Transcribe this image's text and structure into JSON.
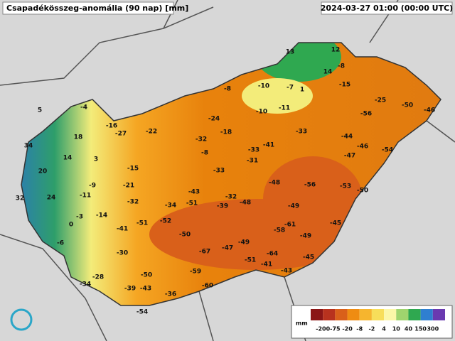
{
  "header": {
    "title": "Csapadékösszeg-anomália (90 nap) [mm]",
    "timestamp": "2024-03-27 01:00 (00:00 UTC)"
  },
  "stations": [
    5,
    18,
    34,
    14,
    3,
    20,
    24,
    32,
    -11,
    -9,
    -3,
    -14,
    0,
    -6,
    -4,
    -16,
    -27,
    -22,
    -15,
    -21,
    -32,
    -41,
    -51,
    -52,
    -34,
    -51,
    -43,
    -30,
    -28,
    -34,
    -50,
    -39,
    -43,
    -36,
    -54,
    -60,
    -59,
    -67,
    -50,
    -47,
    -49,
    -51,
    -41,
    -64,
    -43,
    -45,
    -58,
    -61,
    -49,
    -45,
    -49,
    -48,
    -56,
    -53,
    -50,
    -39,
    -32,
    -48,
    -33,
    -31,
    -33,
    -41,
    -33,
    -24,
    -18,
    -32,
    -8,
    -8,
    -10,
    -7,
    1,
    -10,
    -11,
    13,
    12,
    -8,
    14,
    -15,
    -25,
    -50,
    -46,
    -56,
    -44,
    -46,
    -47,
    -54
  ],
  "legend": {
    "unit": "mm",
    "ticks": [
      -200,
      -75,
      -20,
      -8,
      -2,
      4,
      10,
      40,
      150,
      300
    ],
    "colors": [
      "#8b1616",
      "#b8321e",
      "#d9601a",
      "#ef8c12",
      "#f6b52e",
      "#f7de5a",
      "#fbf7a8",
      "#9fd46e",
      "#2fa850",
      "#2f7fd0",
      "#6a3ab0"
    ]
  }
}
